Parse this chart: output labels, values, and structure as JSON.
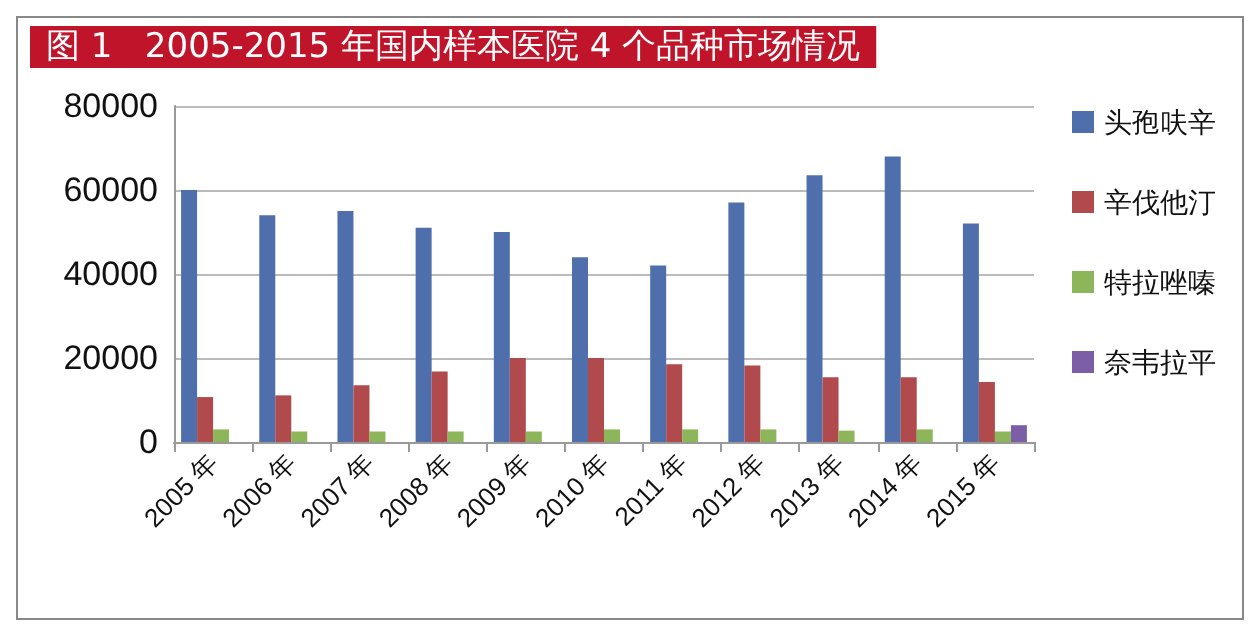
{
  "chart_data": {
    "type": "bar",
    "title": "图 1   2005-2015 年国内样本医院 4 个品种市场情况",
    "categories": [
      "2005 年",
      "2006 年",
      "2007 年",
      "2008 年",
      "2009 年",
      "2010 年",
      "2011 年",
      "2012 年",
      "2013 年",
      "2014 年",
      "2015 年"
    ],
    "series": [
      {
        "name": "头孢呋辛",
        "color": "#4f6fac",
        "values": [
          60000,
          54000,
          55000,
          51000,
          50000,
          44000,
          42000,
          57000,
          63500,
          68000,
          52000
        ]
      },
      {
        "name": "辛伐他汀",
        "color": "#b04a4c",
        "values": [
          10700,
          11100,
          13500,
          16800,
          20000,
          20000,
          18500,
          18200,
          15400,
          15400,
          14300
        ]
      },
      {
        "name": "特拉唑嗪",
        "color": "#8db55a",
        "values": [
          3000,
          2500,
          2500,
          2500,
          2500,
          3000,
          3000,
          3000,
          2700,
          3000,
          2500
        ]
      },
      {
        "name": "奈韦拉平",
        "color": "#7b5ea6",
        "values": [
          null,
          null,
          null,
          null,
          null,
          null,
          null,
          null,
          null,
          null,
          4000
        ]
      }
    ],
    "ylim": [
      0,
      80000
    ],
    "yticks": [
      0,
      20000,
      40000,
      60000,
      80000
    ],
    "grid": "y",
    "legend": "right"
  }
}
